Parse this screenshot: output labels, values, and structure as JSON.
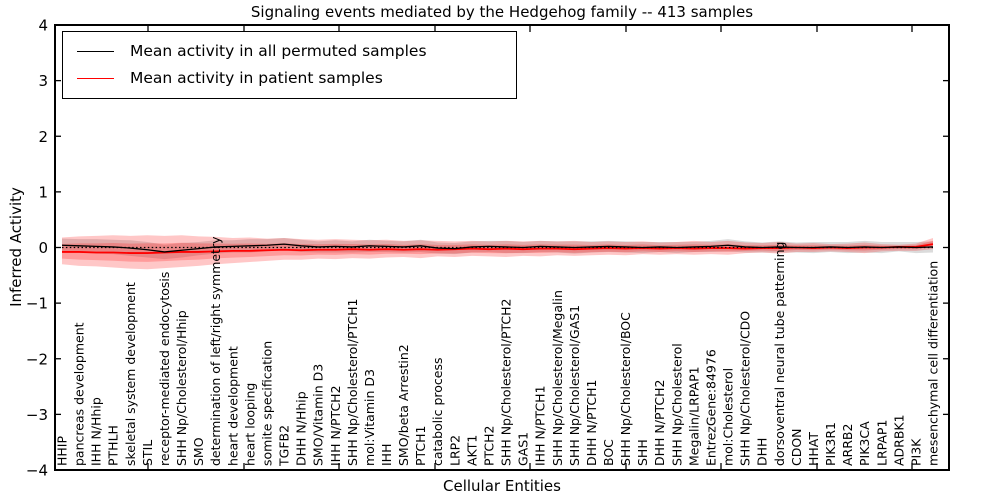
{
  "title": "Signaling events mediated by the Hedgehog family -- 413 samples",
  "chart_data": {
    "type": "line",
    "title": "Signaling events mediated by the Hedgehog family -- 413 samples",
    "xlabel": "Cellular Entities",
    "ylabel": "Inferred Activity",
    "ylim": [
      -4,
      4
    ],
    "ytick_labels": [
      "4",
      "3",
      "2",
      "1",
      "0",
      "−1",
      "−2",
      "−3",
      "−4"
    ],
    "ytick_values": [
      4,
      3,
      2,
      1,
      0,
      -1,
      -2,
      -3,
      -4
    ],
    "grid": false,
    "legend_position": "upper left",
    "zero_line_style": "dotted",
    "categories": [
      "HHIP",
      "pancreas development",
      "IHH N/Hhip",
      "PTHLH",
      "skeletal system development",
      "STIL",
      "receptor-mediated endocytosis",
      "SHH Np/Cholesterol/Hhip",
      "SMO",
      "determination of left/right symmetry",
      "heart development",
      "heart looping",
      "somite specification",
      "TGFB2",
      "DHH N/Hhip",
      "SMO/Vitamin D3",
      "IHH N/PTCH2",
      "SHH Np/Cholesterol/PTCH1",
      "mol:Vitamin D3",
      "IHH",
      "SMO/beta Arrestin2",
      "PTCH1",
      "catabolic process",
      "LRP2",
      "AKT1",
      "PTCH2",
      "SHH Np/Cholesterol/PTCH2",
      "GAS1",
      "IHH N/PTCH1",
      "SHH Np/Cholesterol/Megalin",
      "SHH Np/Cholesterol/GAS1",
      "DHH N/PTCH1",
      "BOC",
      "SHH Np/Cholesterol/BOC",
      "SHH",
      "DHH N/PTCH2",
      "SHH Np/Cholesterol",
      "Megalin/LRPAP1",
      "EntrezGene:84976",
      "mol:Cholesterol",
      "SHH Np/Cholesterol/CDO",
      "DHH",
      "dorsoventral neural tube patterning",
      "CDON",
      "HHAT",
      "PIK3R1",
      "ARRB2",
      "PIK3CA",
      "LRPAP1",
      "ADRBK1",
      "PI3K",
      "mesenchymal cell differentiation"
    ],
    "series": [
      {
        "name": "Mean activity in all permuted samples",
        "color": "#000000",
        "band_color": "#999999",
        "band_opacity": 0.35,
        "values": [
          0.04,
          0.03,
          0.02,
          0.01,
          -0.01,
          -0.04,
          -0.08,
          -0.05,
          -0.02,
          0.01,
          0.02,
          0.03,
          0.04,
          0.06,
          0.03,
          0.01,
          0.02,
          0.01,
          0.03,
          0.02,
          0.01,
          0.03,
          -0.01,
          -0.02,
          0.01,
          0.02,
          0.01,
          0,
          0.02,
          0.01,
          0,
          0.01,
          0.02,
          0.01,
          0,
          0.01,
          0,
          0.01,
          0.02,
          0.04,
          0.01,
          0,
          0.01,
          0,
          0,
          0.01,
          0,
          0.01,
          0,
          0.01,
          0,
          0.01
        ],
        "band_upper": [
          0.16,
          0.15,
          0.15,
          0.14,
          0.13,
          0.1,
          0.05,
          0.08,
          0.1,
          0.13,
          0.13,
          0.15,
          0.15,
          0.17,
          0.14,
          0.11,
          0.13,
          0.11,
          0.14,
          0.12,
          0.11,
          0.14,
          0.09,
          0.08,
          0.11,
          0.12,
          0.12,
          0.1,
          0.12,
          0.11,
          0.11,
          0.11,
          0.12,
          0.11,
          0.1,
          0.1,
          0.1,
          0.1,
          0.12,
          0.15,
          0.11,
          0.09,
          0.11,
          0.09,
          0.1,
          0.1,
          0.1,
          0.12,
          0.1,
          0.1,
          0.1,
          0.11
        ],
        "band_lower": [
          -0.08,
          -0.09,
          -0.11,
          -0.12,
          -0.15,
          -0.18,
          -0.21,
          -0.18,
          -0.14,
          -0.11,
          -0.09,
          -0.09,
          -0.07,
          -0.05,
          -0.08,
          -0.09,
          -0.09,
          -0.09,
          -0.08,
          -0.08,
          -0.09,
          -0.08,
          -0.11,
          -0.12,
          -0.09,
          -0.08,
          -0.1,
          -0.1,
          -0.08,
          -0.09,
          -0.11,
          -0.09,
          -0.08,
          -0.09,
          -0.1,
          -0.08,
          -0.1,
          -0.08,
          -0.08,
          -0.07,
          -0.09,
          -0.09,
          -0.09,
          -0.09,
          -0.1,
          -0.08,
          -0.1,
          -0.09,
          -0.1,
          -0.07,
          -0.1,
          -0.09
        ]
      },
      {
        "name": "Mean activity in patient samples",
        "color": "#ff0000",
        "band_color": "#ff0000",
        "band_opacity": 0.22,
        "values": [
          -0.08,
          -0.08,
          -0.09,
          -0.09,
          -0.1,
          -0.1,
          -0.09,
          -0.08,
          -0.08,
          -0.07,
          -0.06,
          -0.06,
          -0.05,
          -0.04,
          -0.05,
          -0.04,
          -0.04,
          -0.03,
          -0.04,
          -0.03,
          -0.04,
          -0.03,
          -0.04,
          -0.03,
          -0.02,
          -0.03,
          -0.02,
          -0.03,
          -0.02,
          -0.02,
          -0.03,
          -0.02,
          -0.01,
          -0.02,
          -0.01,
          -0.02,
          -0.01,
          -0.02,
          -0.01,
          -0.01,
          -0.02,
          -0.01,
          -0.01,
          0,
          -0.01,
          0,
          -0.01,
          0,
          0,
          0.01,
          0.01,
          0.06
        ],
        "band_upper": [
          0.18,
          0.2,
          0.21,
          0.22,
          0.21,
          0.22,
          0.21,
          0.22,
          0.2,
          0.19,
          0.17,
          0.18,
          0.16,
          0.17,
          0.15,
          0.14,
          0.15,
          0.14,
          0.13,
          0.14,
          0.12,
          0.13,
          0.12,
          0.11,
          0.12,
          0.11,
          0.12,
          0.11,
          0.12,
          0.11,
          0.12,
          0.1,
          0.11,
          0.1,
          0.11,
          0.09,
          0.1,
          0.12,
          0.1,
          0.12,
          0.09,
          0.08,
          0.1,
          0.07,
          0.08,
          0.06,
          0.07,
          0.09,
          0.06,
          0.05,
          0.07,
          0.17
        ],
        "band_lower": [
          -0.3,
          -0.33,
          -0.34,
          -0.36,
          -0.38,
          -0.39,
          -0.37,
          -0.35,
          -0.33,
          -0.3,
          -0.28,
          -0.26,
          -0.24,
          -0.22,
          -0.22,
          -0.2,
          -0.21,
          -0.19,
          -0.2,
          -0.18,
          -0.17,
          -0.19,
          -0.16,
          -0.17,
          -0.15,
          -0.16,
          -0.17,
          -0.15,
          -0.16,
          -0.14,
          -0.15,
          -0.14,
          -0.13,
          -0.14,
          -0.12,
          -0.13,
          -0.12,
          -0.13,
          -0.12,
          -0.13,
          -0.1,
          -0.09,
          -0.11,
          -0.08,
          -0.08,
          -0.07,
          -0.08,
          -0.1,
          -0.07,
          -0.06,
          -0.06,
          -0.03
        ]
      }
    ]
  }
}
